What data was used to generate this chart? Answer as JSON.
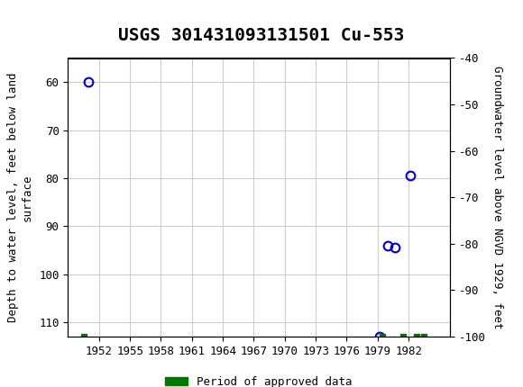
{
  "title": "USGS 301431093131501 Cu-553",
  "xlabel": "",
  "ylabel_left": "Depth to water level, feet below land\nsurface",
  "ylabel_right": "Groundwater level above NGVD 1929, feet",
  "xlim": [
    1949,
    1986
  ],
  "ylim_left": [
    113,
    55
  ],
  "ylim_right": [
    -100,
    -40
  ],
  "xticks": [
    1952,
    1955,
    1958,
    1961,
    1964,
    1967,
    1970,
    1973,
    1976,
    1979,
    1982
  ],
  "yticks_left": [
    60,
    70,
    80,
    90,
    100,
    110
  ],
  "yticks_right": [
    -40,
    -50,
    -60,
    -70,
    -80,
    -90,
    -100
  ],
  "data_points_x": [
    1951.0,
    1979.2,
    1980.0,
    1980.7,
    1982.2
  ],
  "data_points_y": [
    60.0,
    113.0,
    94.0,
    94.5,
    79.5
  ],
  "green_markers_x": [
    1950.5,
    1979.5,
    1981.5,
    1982.8,
    1983.5
  ],
  "green_markers_y": [
    113.0,
    113.0,
    113.0,
    113.0,
    113.0
  ],
  "point_color": "#0000cc",
  "green_color": "#007700",
  "bg_color": "#ffffff",
  "grid_color": "#cccccc",
  "header_color": "#006644",
  "title_fontsize": 14,
  "axis_fontsize": 9,
  "tick_fontsize": 9
}
